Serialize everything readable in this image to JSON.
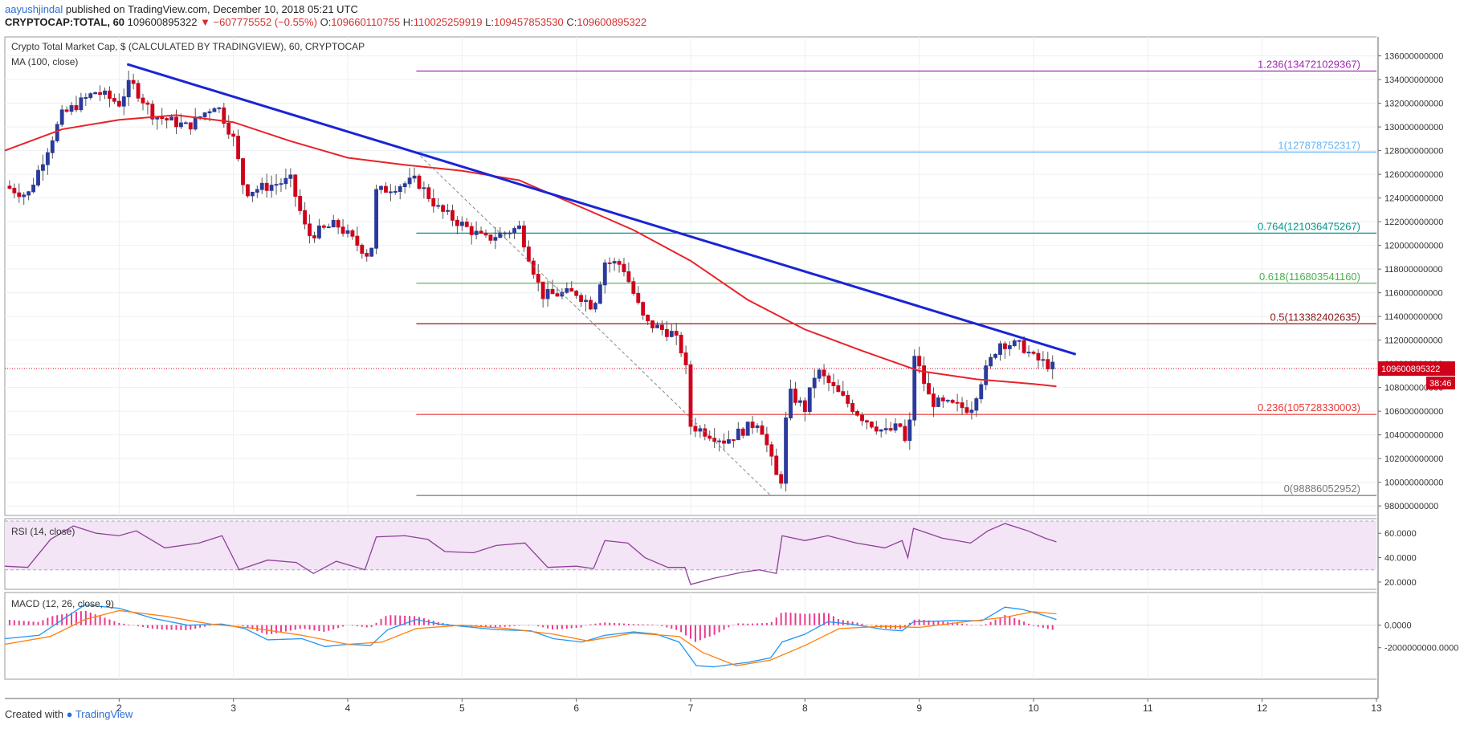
{
  "header": {
    "author": "aayushjindal",
    "published": "published on TradingView.com, December 10, 2018 05:21 UTC",
    "symbol": "CRYPTOCAP:TOTAL, 60",
    "last": "109600895322",
    "change": "▼ −607775552 (−0.55%)",
    "open_label": "O:",
    "open": "109660110755",
    "high_label": "H:",
    "high": "110025259919",
    "low_label": "L:",
    "low": "109457853530",
    "close_label": "C:",
    "close": "109600895322"
  },
  "legend": {
    "title": "Crypto Total Market Cap, $ (CALCULATED BY TRADINGVIEW), 60, CRYPTOCAP",
    "ma": "MA (100, close)",
    "rsi": "RSI (14, close)",
    "macd": "MACD (12, 26, close, 9)"
  },
  "footer": {
    "created": "Created with",
    "brand": "TradingView"
  },
  "colors": {
    "up": "#2a3b9c",
    "down": "#d0021b",
    "ma": "#e8232a",
    "trend": "#1a25d4",
    "rsi": "#8e3f9a",
    "macd": "#2196f3",
    "signal": "#ff7f0e",
    "hist": "#e93a8f"
  },
  "chart_data": {
    "type": "candlestick",
    "unit": "$",
    "x_ticks": [
      "2",
      "3",
      "4",
      "5",
      "6",
      "7",
      "8",
      "9",
      "10",
      "11",
      "12",
      "13"
    ],
    "y_ticks": [
      "98000000000",
      "100000000000",
      "102000000000",
      "104000000000",
      "106000000000",
      "108000000000",
      "110000000000",
      "112000000000",
      "114000000000",
      "116000000000",
      "118000000000",
      "120000000000",
      "122000000000",
      "124000000000",
      "126000000000",
      "128000000000",
      "130000000000",
      "132000000000",
      "134000000000",
      "136000000000"
    ],
    "ylim": [
      97200000000,
      137600000000
    ],
    "xlim": [
      1.0,
      13.0
    ],
    "price_label": "109600895322",
    "countdown": "38:46",
    "fib_levels": [
      {
        "ratio": "1.236",
        "label": "1.236(134721029367)",
        "value": 134721029367,
        "color": "#9c27b0"
      },
      {
        "ratio": "1",
        "label": "1(127878752317)",
        "value": 127878752317,
        "color": "#64b5f6"
      },
      {
        "ratio": "0.764",
        "label": "0.764(121036475267)",
        "value": 121036475267,
        "color": "#009688"
      },
      {
        "ratio": "0.618",
        "label": "0.618(116803541160)",
        "value": 116803541160,
        "color": "#4caf50"
      },
      {
        "ratio": "0.5",
        "label": "0.5(113382402635)",
        "value": 113382402635,
        "color": "#8b1a1a"
      },
      {
        "ratio": "0.236",
        "label": "0.236(105728330003)",
        "value": 105728330003,
        "color": "#e53935"
      },
      {
        "ratio": "0",
        "label": "0(98886052952)",
        "value": 98886052952,
        "color": "#777777"
      }
    ],
    "fib_start_x": 4.6,
    "trendline": [
      [
        2.07,
        135300000000
      ],
      [
        10.37,
        110800000000
      ]
    ],
    "fib_swing": [
      [
        4.6,
        127878752317
      ],
      [
        7.7,
        98886052952
      ]
    ],
    "ma100": [
      [
        1.0,
        128000000000
      ],
      [
        1.5,
        129800000000
      ],
      [
        2.0,
        130600000000
      ],
      [
        2.5,
        131000000000
      ],
      [
        3.0,
        130400000000
      ],
      [
        3.5,
        128800000000
      ],
      [
        4.0,
        127400000000
      ],
      [
        4.5,
        126800000000
      ],
      [
        5.0,
        126300000000
      ],
      [
        5.5,
        125500000000
      ],
      [
        6.0,
        123400000000
      ],
      [
        6.5,
        121300000000
      ],
      [
        7.0,
        118700000000
      ],
      [
        7.5,
        115400000000
      ],
      [
        8.0,
        112900000000
      ],
      [
        8.5,
        111100000000
      ],
      [
        9.0,
        109400000000
      ],
      [
        9.5,
        108700000000
      ],
      [
        10.0,
        108300000000
      ],
      [
        10.2,
        108100000000
      ]
    ],
    "price_path": [
      [
        1.0,
        125000000000
      ],
      [
        1.2,
        124200000000
      ],
      [
        1.5,
        131000000000
      ],
      [
        1.8,
        133000000000
      ],
      [
        2.0,
        132000000000
      ],
      [
        2.1,
        133800000000
      ],
      [
        2.3,
        131000000000
      ],
      [
        2.6,
        130000000000
      ],
      [
        2.85,
        132000000000
      ],
      [
        3.0,
        129000000000
      ],
      [
        3.1,
        124500000000
      ],
      [
        3.5,
        125500000000
      ],
      [
        3.65,
        120800000000
      ],
      [
        3.9,
        121800000000
      ],
      [
        4.2,
        119000000000
      ],
      [
        4.25,
        124500000000
      ],
      [
        4.6,
        125500000000
      ],
      [
        4.8,
        123000000000
      ],
      [
        5.2,
        120500000000
      ],
      [
        5.5,
        121500000000
      ],
      [
        5.7,
        115800000000
      ],
      [
        6.0,
        116000000000
      ],
      [
        6.15,
        114800000000
      ],
      [
        6.25,
        118600000000
      ],
      [
        6.4,
        118400000000
      ],
      [
        6.6,
        113500000000
      ],
      [
        6.85,
        112500000000
      ],
      [
        6.95,
        110500000000
      ],
      [
        7.0,
        104800000000
      ],
      [
        7.3,
        103500000000
      ],
      [
        7.6,
        105200000000
      ],
      [
        7.75,
        100500000000
      ],
      [
        7.8,
        100200000000
      ],
      [
        7.85,
        107700000000
      ],
      [
        8.0,
        106200000000
      ],
      [
        8.1,
        109500000000
      ],
      [
        8.3,
        107400000000
      ],
      [
        8.5,
        105500000000
      ],
      [
        8.7,
        104200000000
      ],
      [
        8.85,
        104800000000
      ],
      [
        8.9,
        102000000000
      ],
      [
        8.95,
        111000000000
      ],
      [
        9.1,
        106800000000
      ],
      [
        9.45,
        106200000000
      ],
      [
        9.55,
        108800000000
      ],
      [
        9.7,
        111800000000
      ],
      [
        9.9,
        111500000000
      ],
      [
        10.0,
        110500000000
      ],
      [
        10.2,
        109600895322
      ]
    ],
    "rsi": {
      "ylim": [
        14,
        72
      ],
      "ticks": [
        "60.0000",
        "40.0000",
        "20.0000"
      ],
      "tick_values": [
        60,
        40,
        20
      ],
      "bands": [
        70,
        30
      ],
      "series": [
        [
          1.0,
          33
        ],
        [
          1.2,
          32
        ],
        [
          1.4,
          55
        ],
        [
          1.6,
          66
        ],
        [
          1.8,
          60
        ],
        [
          2.0,
          58
        ],
        [
          2.15,
          62
        ],
        [
          2.4,
          48
        ],
        [
          2.7,
          52
        ],
        [
          2.9,
          58
        ],
        [
          3.05,
          30
        ],
        [
          3.3,
          38
        ],
        [
          3.55,
          36
        ],
        [
          3.7,
          27
        ],
        [
          3.9,
          37
        ],
        [
          4.15,
          30
        ],
        [
          4.25,
          57
        ],
        [
          4.5,
          58
        ],
        [
          4.7,
          55
        ],
        [
          4.85,
          45
        ],
        [
          5.1,
          44
        ],
        [
          5.3,
          50
        ],
        [
          5.55,
          52
        ],
        [
          5.75,
          32
        ],
        [
          6.0,
          33
        ],
        [
          6.15,
          31
        ],
        [
          6.25,
          54
        ],
        [
          6.45,
          52
        ],
        [
          6.6,
          40
        ],
        [
          6.8,
          32
        ],
        [
          6.95,
          32
        ],
        [
          7.0,
          18
        ],
        [
          7.2,
          23
        ],
        [
          7.45,
          28
        ],
        [
          7.6,
          30
        ],
        [
          7.75,
          27
        ],
        [
          7.8,
          58
        ],
        [
          8.0,
          54
        ],
        [
          8.2,
          58
        ],
        [
          8.45,
          52
        ],
        [
          8.7,
          48
        ],
        [
          8.85,
          54
        ],
        [
          8.9,
          40
        ],
        [
          8.95,
          64
        ],
        [
          9.2,
          56
        ],
        [
          9.45,
          52
        ],
        [
          9.6,
          62
        ],
        [
          9.75,
          68
        ],
        [
          9.95,
          62
        ],
        [
          10.1,
          56
        ],
        [
          10.2,
          53
        ]
      ]
    },
    "macd": {
      "ylim": [
        -4800000000,
        2900000000
      ],
      "ticks": [
        "0.0000",
        "-2000000000.0000"
      ],
      "tick_values": [
        0,
        -2000000000
      ],
      "macd_line": [
        [
          1.0,
          -1200000000
        ],
        [
          1.3,
          -900000000
        ],
        [
          1.55,
          800000000
        ],
        [
          1.7,
          1800000000
        ],
        [
          2.0,
          1500000000
        ],
        [
          2.3,
          600000000
        ],
        [
          2.6,
          0
        ],
        [
          2.9,
          100000000
        ],
        [
          3.1,
          -300000000
        ],
        [
          3.3,
          -1300000000
        ],
        [
          3.6,
          -1200000000
        ],
        [
          3.8,
          -1900000000
        ],
        [
          4.0,
          -1700000000
        ],
        [
          4.2,
          -1800000000
        ],
        [
          4.35,
          -400000000
        ],
        [
          4.6,
          500000000
        ],
        [
          4.8,
          100000000
        ],
        [
          5.0,
          -100000000
        ],
        [
          5.3,
          -400000000
        ],
        [
          5.6,
          -500000000
        ],
        [
          5.8,
          -1200000000
        ],
        [
          6.05,
          -1500000000
        ],
        [
          6.25,
          -900000000
        ],
        [
          6.5,
          -600000000
        ],
        [
          6.7,
          -800000000
        ],
        [
          6.9,
          -1500000000
        ],
        [
          7.05,
          -3600000000
        ],
        [
          7.2,
          -3700000000
        ],
        [
          7.5,
          -3300000000
        ],
        [
          7.7,
          -2900000000
        ],
        [
          7.8,
          -1500000000
        ],
        [
          8.0,
          -800000000
        ],
        [
          8.2,
          300000000
        ],
        [
          8.4,
          100000000
        ],
        [
          8.7,
          -400000000
        ],
        [
          8.85,
          -500000000
        ],
        [
          8.95,
          300000000
        ],
        [
          9.3,
          400000000
        ],
        [
          9.55,
          400000000
        ],
        [
          9.75,
          1600000000
        ],
        [
          9.9,
          1400000000
        ],
        [
          10.05,
          1000000000
        ],
        [
          10.2,
          500000000
        ]
      ],
      "signal_line": [
        [
          1.0,
          -1700000000
        ],
        [
          1.4,
          -1000000000
        ],
        [
          1.7,
          500000000
        ],
        [
          2.0,
          1300000000
        ],
        [
          2.4,
          800000000
        ],
        [
          2.8,
          100000000
        ],
        [
          3.2,
          -300000000
        ],
        [
          3.6,
          -900000000
        ],
        [
          4.0,
          -1700000000
        ],
        [
          4.3,
          -1500000000
        ],
        [
          4.6,
          -300000000
        ],
        [
          5.0,
          0
        ],
        [
          5.4,
          -300000000
        ],
        [
          5.8,
          -800000000
        ],
        [
          6.1,
          -1400000000
        ],
        [
          6.5,
          -700000000
        ],
        [
          6.9,
          -1000000000
        ],
        [
          7.1,
          -2400000000
        ],
        [
          7.4,
          -3600000000
        ],
        [
          7.7,
          -3100000000
        ],
        [
          8.0,
          -1800000000
        ],
        [
          8.3,
          -300000000
        ],
        [
          8.7,
          -100000000
        ],
        [
          9.0,
          -200000000
        ],
        [
          9.4,
          300000000
        ],
        [
          9.75,
          700000000
        ],
        [
          10.0,
          1200000000
        ],
        [
          10.2,
          1000000000
        ]
      ]
    }
  }
}
